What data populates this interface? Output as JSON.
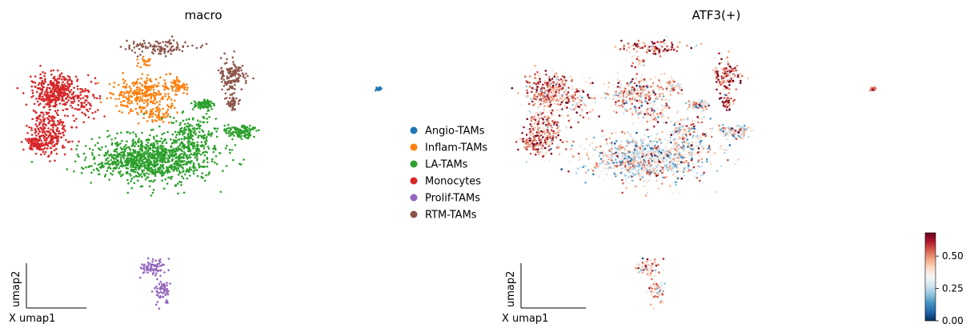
{
  "chart_data": [
    {
      "type": "scatter",
      "title": "macro",
      "xlabel": "umap1",
      "ylabel": "umap2",
      "axis_corner_glyph": "X",
      "legend_placement": "right",
      "series": [
        {
          "name": "Angio-TAMs",
          "color": "#1f77b4",
          "approx_cells": 30
        },
        {
          "name": "Inflam-TAMs",
          "color": "#ff7f0e",
          "approx_cells": 700
        },
        {
          "name": "LA-TAMs",
          "color": "#2ca02c",
          "approx_cells": 2400
        },
        {
          "name": "Monocytes",
          "color": "#d62728",
          "approx_cells": 1300
        },
        {
          "name": "Prolif-TAMs",
          "color": "#9467bd",
          "approx_cells": 220
        },
        {
          "name": "RTM-TAMs",
          "color": "#8c564b",
          "approx_cells": 500
        }
      ]
    },
    {
      "type": "scatter",
      "title": "ATF3(+)",
      "xlabel": "umap1",
      "ylabel": "umap2",
      "axis_corner_glyph": "X",
      "colormap": "RdBu_r",
      "colorbar": {
        "min": 0.0,
        "max": 0.68,
        "ticks": [
          "0.00",
          "0.25",
          "0.50"
        ]
      }
    }
  ]
}
